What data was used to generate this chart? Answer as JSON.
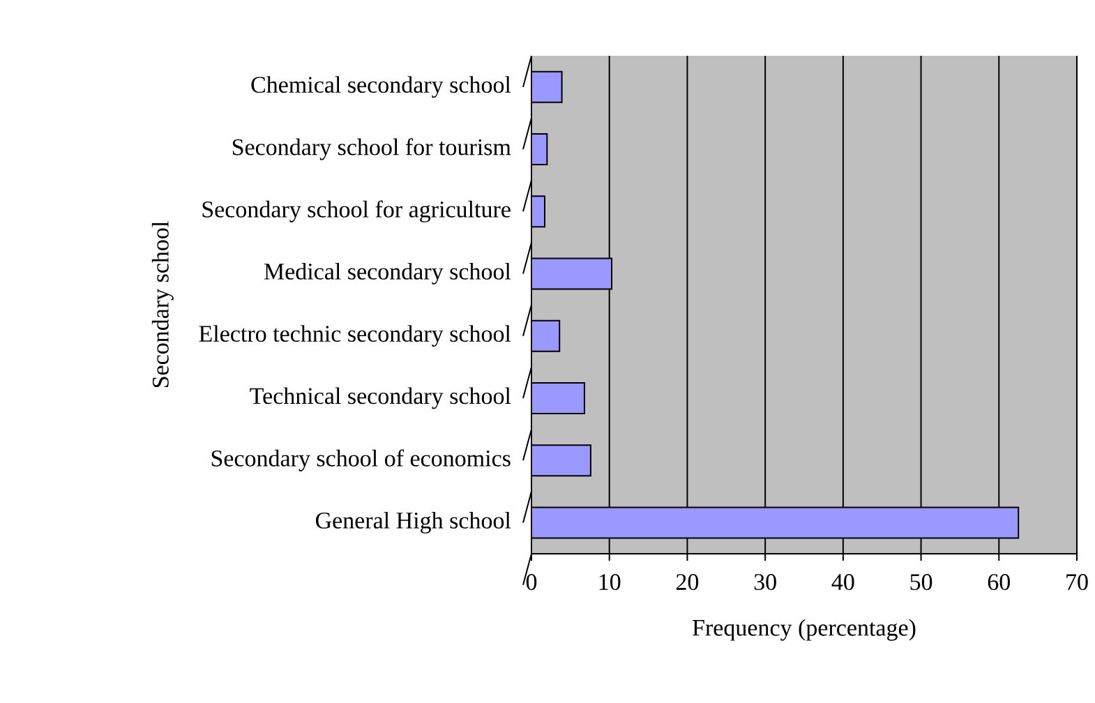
{
  "chart_data": {
    "type": "bar",
    "orientation": "horizontal",
    "categories": [
      "Chemical secondary school",
      "Secondary school for tourism",
      "Secondary school for agriculture",
      "Medical secondary school",
      "Electro technic secondary school",
      "Technical secondary school",
      "Secondary school of economics",
      "General High school"
    ],
    "values": [
      3.9,
      2.0,
      1.7,
      10.3,
      3.6,
      6.8,
      7.6,
      62.5
    ],
    "color": "#9999ff",
    "xlabel": "Frequency (percentage)",
    "ylabel": "Secondary school",
    "xlim": [
      0,
      70
    ],
    "xticks": [
      0,
      10,
      20,
      30,
      40,
      50,
      60,
      70
    ],
    "grid": "x"
  }
}
